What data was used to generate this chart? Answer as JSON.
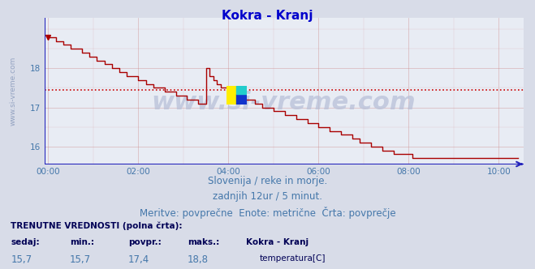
{
  "title": "Kokra - Kranj",
  "title_color": "#0000cc",
  "title_fontsize": 11,
  "bg_color": "#d8dce8",
  "plot_bg_color": "#e8ecf4",
  "line_color": "#aa0000",
  "line_width": 1.0,
  "avg_line_color": "#cc0000",
  "avg_line_value": 17.45,
  "xaxis_line_color": "#2222bb",
  "yaxis_line_color": "#2222bb",
  "grid_color": "#cc8888",
  "grid_alpha": 0.6,
  "ylim_min": 15.55,
  "ylim_max": 19.3,
  "yticks": [
    16,
    17,
    18
  ],
  "xtick_labels": [
    "00:00",
    "02:00",
    "04:00",
    "06:00",
    "08:00",
    "10:00"
  ],
  "xtick_positions": [
    0,
    24,
    48,
    72,
    96,
    120
  ],
  "subtitle_lines": [
    "Slovenija / reke in morje.",
    "zadnjih 12ur / 5 minut.",
    "Meritve: povprečne  Enote: metrične  Črta: povprečje"
  ],
  "subtitle_color": "#4477aa",
  "subtitle_fontsize": 8.5,
  "bottom_label_bold": "TRENUTNE VREDNOSTI (polna črta):",
  "bottom_cols": [
    "sedaj:",
    "min.:",
    "povpr.:",
    "maks.:",
    "Kokra - Kranj"
  ],
  "bottom_vals": [
    "15,7",
    "15,7",
    "17,4",
    "18,8"
  ],
  "bottom_legend_label": "temperatura[C]",
  "bottom_legend_color": "#cc0000",
  "watermark_text": "www.si-vreme.com",
  "watermark_fontsize": 22,
  "ylabel_text": "www.si-vreme.com",
  "ylabel_color": "#8899bb",
  "ylabel_fontsize": 6.5,
  "temperature_data": [
    18.8,
    18.8,
    18.7,
    18.7,
    18.6,
    18.6,
    18.5,
    18.5,
    18.5,
    18.4,
    18.4,
    18.3,
    18.3,
    18.2,
    18.2,
    18.1,
    18.1,
    18.0,
    18.0,
    17.9,
    17.9,
    17.8,
    17.8,
    17.8,
    17.7,
    17.7,
    17.6,
    17.6,
    17.5,
    17.5,
    17.5,
    17.4,
    17.4,
    17.4,
    17.3,
    17.3,
    17.3,
    17.2,
    17.2,
    17.2,
    17.1,
    17.1,
    18.0,
    17.8,
    17.7,
    17.6,
    17.5,
    17.5,
    17.4,
    17.4,
    17.3,
    17.3,
    17.2,
    17.2,
    17.2,
    17.1,
    17.1,
    17.0,
    17.0,
    17.0,
    16.9,
    16.9,
    16.9,
    16.8,
    16.8,
    16.8,
    16.7,
    16.7,
    16.7,
    16.6,
    16.6,
    16.6,
    16.5,
    16.5,
    16.5,
    16.4,
    16.4,
    16.4,
    16.3,
    16.3,
    16.3,
    16.2,
    16.2,
    16.1,
    16.1,
    16.1,
    16.0,
    16.0,
    16.0,
    15.9,
    15.9,
    15.9,
    15.8,
    15.8,
    15.8,
    15.8,
    15.8,
    15.7,
    15.7,
    15.7,
    15.7,
    15.7,
    15.7,
    15.7,
    15.7,
    15.7,
    15.7,
    15.7,
    15.7,
    15.7,
    15.7,
    15.7,
    15.7,
    15.7,
    15.7,
    15.7,
    15.7,
    15.7,
    15.7,
    15.7,
    15.7,
    15.7,
    15.7,
    15.7,
    15.7,
    15.7
  ]
}
